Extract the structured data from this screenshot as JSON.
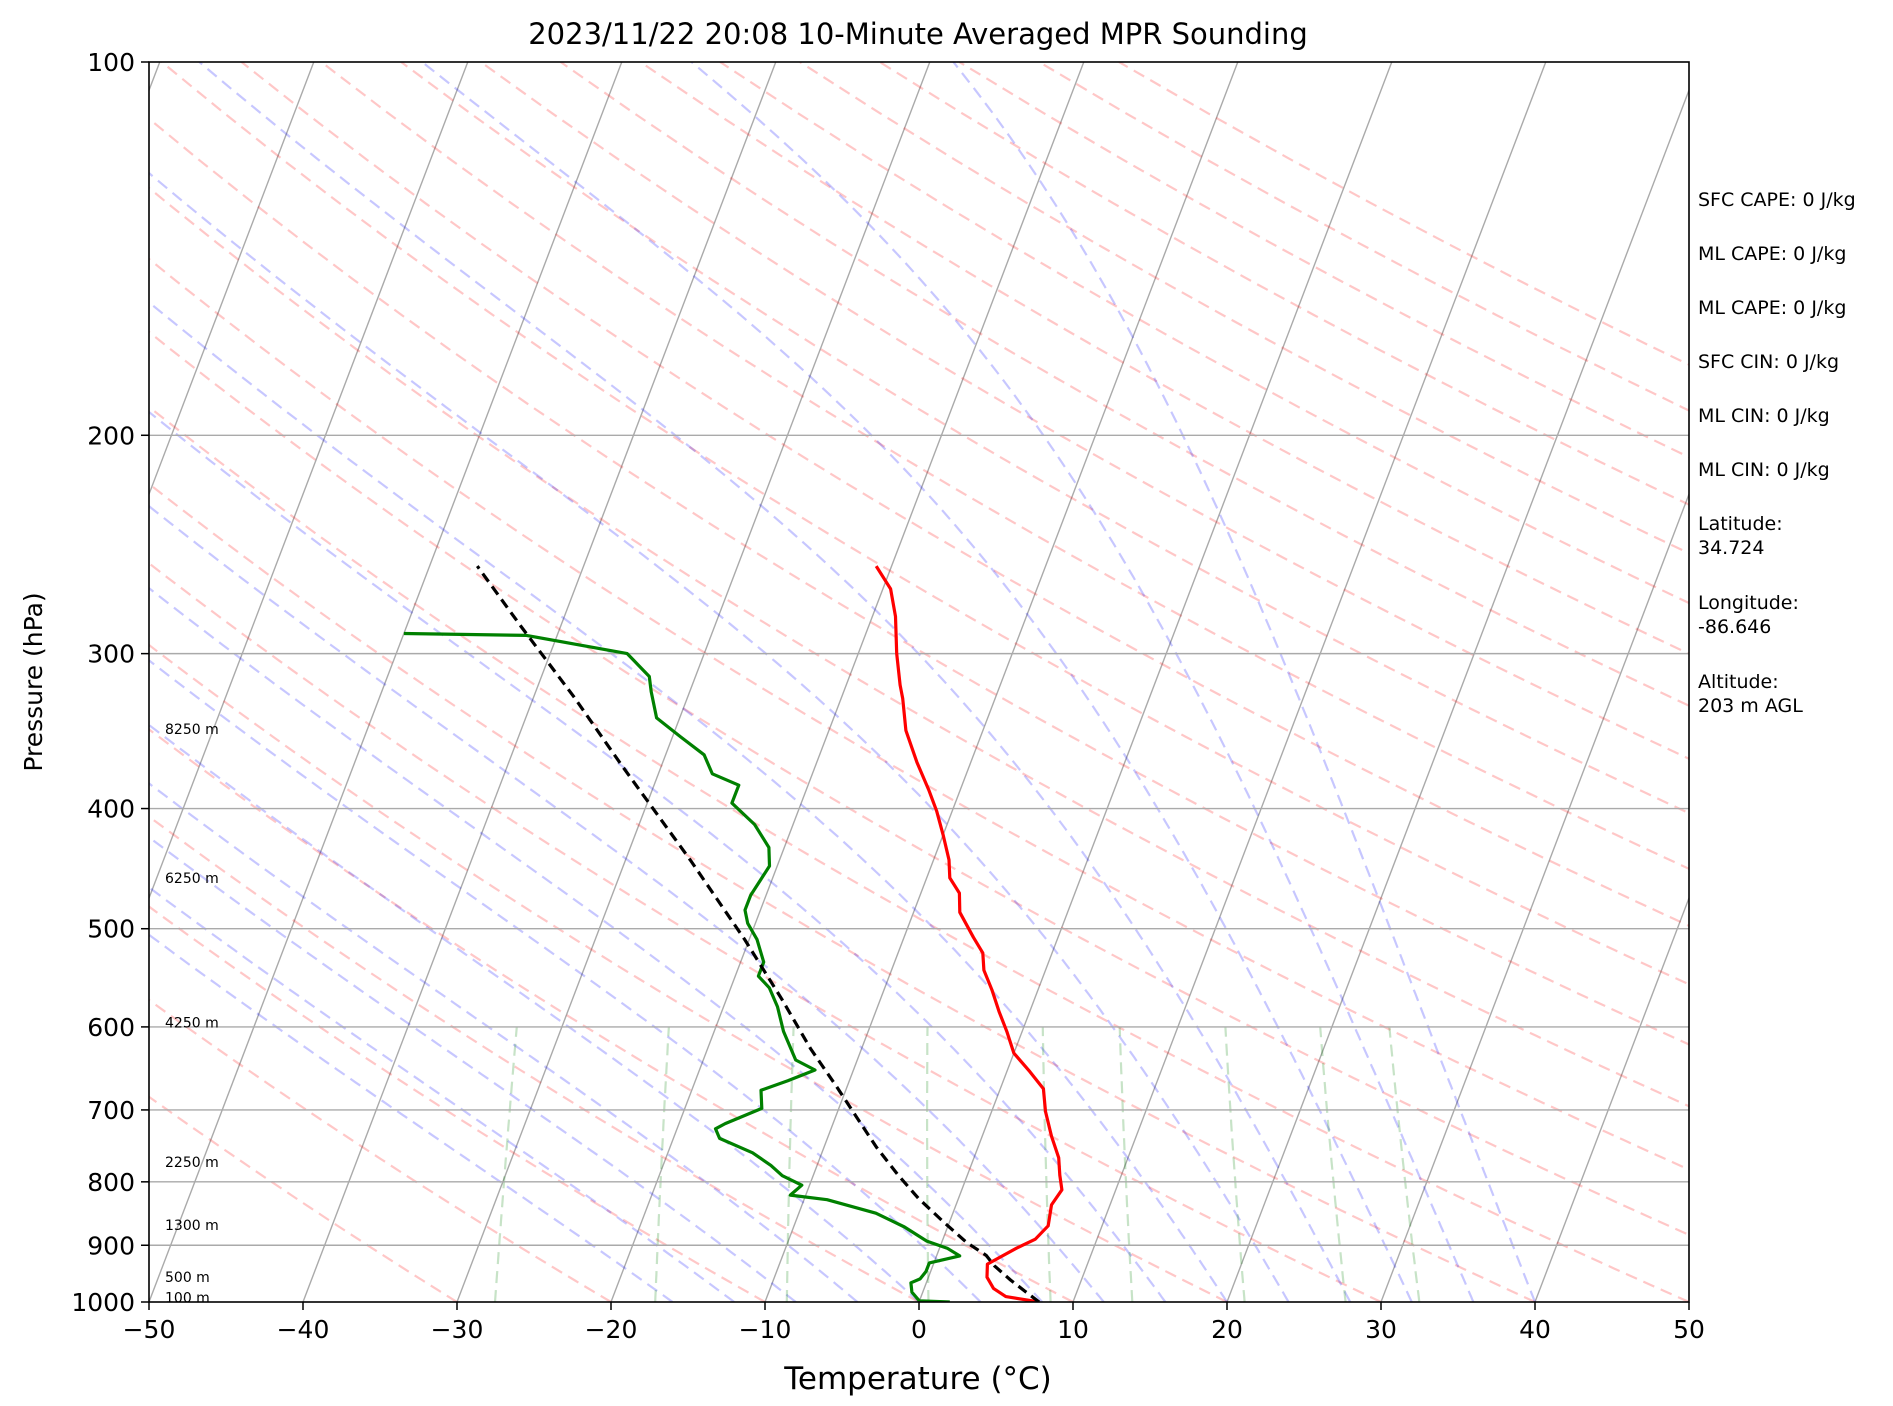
{
  "chart_data": {
    "type": "line",
    "title": "2023/11/22 20:08 10-Minute Averaged MPR Sounding",
    "xlabel": "Temperature (°C)",
    "ylabel": "Pressure (hPa)",
    "xlim": [
      -50,
      50
    ],
    "ylim": [
      1000,
      100
    ],
    "yscale": "log",
    "skew_t": true,
    "grid": true,
    "x_ticks": [
      -50,
      -40,
      -30,
      -20,
      -10,
      0,
      10,
      20,
      30,
      40,
      50
    ],
    "x_tick_labels": [
      "−50",
      "−40",
      "−30",
      "−20",
      "−10",
      "0",
      "10",
      "20",
      "30",
      "40",
      "50"
    ],
    "y_ticks": [
      1000,
      900,
      800,
      700,
      600,
      500,
      400,
      300,
      200,
      100
    ],
    "y_tick_labels": [
      "1000",
      "900",
      "800",
      "700",
      "600",
      "500",
      "400",
      "300",
      "200",
      "100"
    ],
    "height_labels": [
      {
        "pressure": 345,
        "text": "8250 m"
      },
      {
        "pressure": 455,
        "text": "6250 m"
      },
      {
        "pressure": 595,
        "text": "4250 m"
      },
      {
        "pressure": 771,
        "text": "2250 m"
      },
      {
        "pressure": 867,
        "text": "1300 m"
      },
      {
        "pressure": 955,
        "text": "500 m"
      },
      {
        "pressure": 992,
        "text": "100 m"
      }
    ],
    "series": [
      {
        "color": "#ff0000",
        "points": [
          [
            7.8,
            1000
          ],
          [
            5.5,
            990
          ],
          [
            4.5,
            975
          ],
          [
            3.8,
            955
          ],
          [
            3.5,
            932
          ],
          [
            5.0,
            905
          ],
          [
            6.0,
            890
          ],
          [
            6.5,
            868
          ],
          [
            6.2,
            835
          ],
          [
            6.5,
            812
          ],
          [
            6.0,
            790
          ],
          [
            5.5,
            765
          ],
          [
            4.5,
            735
          ],
          [
            3.5,
            702
          ],
          [
            2.8,
            673
          ],
          [
            1.5,
            652
          ],
          [
            0.0,
            630
          ],
          [
            -1.0,
            605
          ],
          [
            -2.0,
            583
          ],
          [
            -3.0,
            560
          ],
          [
            -4.0,
            540
          ],
          [
            -4.5,
            523
          ],
          [
            -5.5,
            508
          ],
          [
            -7.0,
            485
          ],
          [
            -7.5,
            468
          ],
          [
            -8.5,
            455
          ],
          [
            -9.0,
            440
          ],
          [
            -10.0,
            420
          ],
          [
            -11.0,
            402
          ],
          [
            -12.0,
            387
          ],
          [
            -13.5,
            367
          ],
          [
            -15.0,
            346
          ],
          [
            -16.0,
            326
          ],
          [
            -16.5,
            318
          ],
          [
            -17.5,
            300
          ],
          [
            -18.5,
            280
          ],
          [
            -19.5,
            266
          ],
          [
            -21.0,
            255
          ]
        ]
      },
      {
        "color": "#008000",
        "points": [
          [
            2.0,
            1000
          ],
          [
            0.0,
            998
          ],
          [
            -0.7,
            982
          ],
          [
            -1.0,
            965
          ],
          [
            -0.5,
            958
          ],
          [
            -0.3,
            945
          ],
          [
            -0.3,
            930
          ],
          [
            1.5,
            918
          ],
          [
            0.5,
            905
          ],
          [
            -1.0,
            893
          ],
          [
            -2.8,
            870
          ],
          [
            -5.0,
            848
          ],
          [
            -8.5,
            827
          ],
          [
            -11.0,
            820
          ],
          [
            -10.5,
            805
          ],
          [
            -12.0,
            791
          ],
          [
            -13.0,
            776
          ],
          [
            -14.5,
            758
          ],
          [
            -17.0,
            738
          ],
          [
            -17.5,
            725
          ],
          [
            -17.0,
            718
          ],
          [
            -15.0,
            698
          ],
          [
            -15.5,
            675
          ],
          [
            -14.0,
            663
          ],
          [
            -12.5,
            650
          ],
          [
            -14.0,
            638
          ],
          [
            -15.5,
            605
          ],
          [
            -16.5,
            578
          ],
          [
            -17.5,
            558
          ],
          [
            -18.5,
            546
          ],
          [
            -18.5,
            532
          ],
          [
            -19.5,
            510
          ],
          [
            -20.5,
            495
          ],
          [
            -21.0,
            483
          ],
          [
            -21.0,
            470
          ],
          [
            -20.5,
            445
          ],
          [
            -21.0,
            430
          ],
          [
            -22.5,
            412
          ],
          [
            -24.5,
            396
          ],
          [
            -24.5,
            383
          ],
          [
            -26.5,
            375
          ],
          [
            -27.5,
            362
          ],
          [
            -29.5,
            350
          ],
          [
            -31.5,
            338
          ],
          [
            -32.5,
            322
          ],
          [
            -33.0,
            313
          ],
          [
            -35.0,
            300
          ],
          [
            -42.0,
            290
          ],
          [
            -50.0,
            289
          ]
        ]
      },
      {
        "color": "#000000",
        "dashed": true,
        "points": [
          [
            7.8,
            1000
          ],
          [
            6.6,
            980
          ],
          [
            5.4,
            960
          ],
          [
            4.0,
            935
          ],
          [
            3.2,
            917
          ],
          [
            1.6,
            895
          ],
          [
            -0.5,
            860
          ],
          [
            -2.6,
            825
          ],
          [
            -4.5,
            790
          ],
          [
            -6.6,
            750
          ],
          [
            -8.6,
            710
          ],
          [
            -10.7,
            670
          ],
          [
            -13.3,
            625
          ],
          [
            -16.4,
            570
          ],
          [
            -20.3,
            510
          ],
          [
            -25.8,
            440
          ],
          [
            -32.5,
            370
          ],
          [
            -37.4,
            325
          ],
          [
            -42.6,
            285
          ],
          [
            -46.9,
            255
          ]
        ]
      }
    ],
    "reference_lines": {
      "isotherms": {
        "color": "#aaaaaa",
        "style": "solid"
      },
      "dry_adiabats": {
        "color": "#ff0000",
        "style": "dashed"
      },
      "moist_adiabats": {
        "color": "#0000ff",
        "style": "dashed"
      },
      "mixing_ratio_lines": {
        "color": "#008000",
        "style": "dashed"
      }
    }
  },
  "side_panel": [
    "SFC CAPE: 0 J/kg",
    "ML CAPE: 0 J/kg",
    "ML CAPE: 0 J/kg",
    "SFC CIN: 0 J/kg",
    "ML CIN: 0 J/kg",
    "ML CIN: 0 J/kg",
    "Latitude:\n34.724",
    "Longitude:\n-86.646",
    "Altitude:\n203 m AGL"
  ]
}
